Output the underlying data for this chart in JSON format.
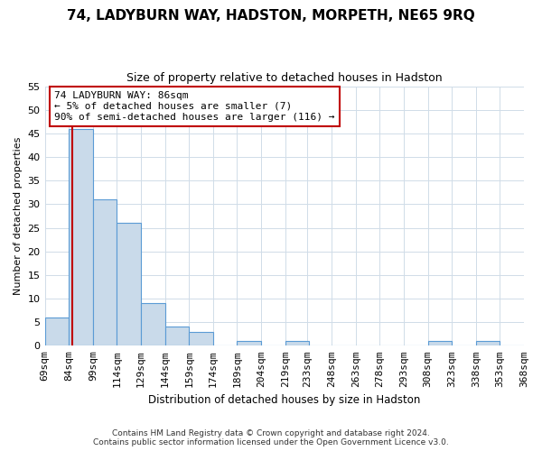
{
  "title": "74, LADYBURN WAY, HADSTON, MORPETH, NE65 9RQ",
  "subtitle": "Size of property relative to detached houses in Hadston",
  "xlabel": "Distribution of detached houses by size in Hadston",
  "ylabel": "Number of detached properties",
  "bar_left_edges": [
    69,
    84,
    99,
    114,
    129,
    144,
    159,
    174,
    189,
    204,
    219,
    233,
    248,
    263,
    278,
    293,
    308,
    323,
    338,
    353
  ],
  "bar_heights": [
    6,
    46,
    31,
    26,
    9,
    4,
    3,
    0,
    1,
    0,
    1,
    0,
    0,
    0,
    0,
    0,
    1,
    0,
    1,
    0
  ],
  "bin_width": 15,
  "bar_color": "#c9daea",
  "bar_edge_color": "#5b9bd5",
  "tick_labels": [
    "69sqm",
    "84sqm",
    "99sqm",
    "114sqm",
    "129sqm",
    "144sqm",
    "159sqm",
    "174sqm",
    "189sqm",
    "204sqm",
    "219sqm",
    "233sqm",
    "248sqm",
    "263sqm",
    "278sqm",
    "293sqm",
    "308sqm",
    "323sqm",
    "338sqm",
    "353sqm",
    "368sqm"
  ],
  "property_line_x": 86,
  "property_line_color": "#c00000",
  "ylim": [
    0,
    55
  ],
  "yticks": [
    0,
    5,
    10,
    15,
    20,
    25,
    30,
    35,
    40,
    45,
    50,
    55
  ],
  "annotation_text": "74 LADYBURN WAY: 86sqm\n← 5% of detached houses are smaller (7)\n90% of semi-detached houses are larger (116) →",
  "annotation_box_color": "#ffffff",
  "annotation_box_edge": "#c00000",
  "footer1": "Contains HM Land Registry data © Crown copyright and database right 2024.",
  "footer2": "Contains public sector information licensed under the Open Government Licence v3.0.",
  "background_color": "#ffffff",
  "grid_color": "#d0dce8",
  "title_fontsize": 11,
  "subtitle_fontsize": 9
}
